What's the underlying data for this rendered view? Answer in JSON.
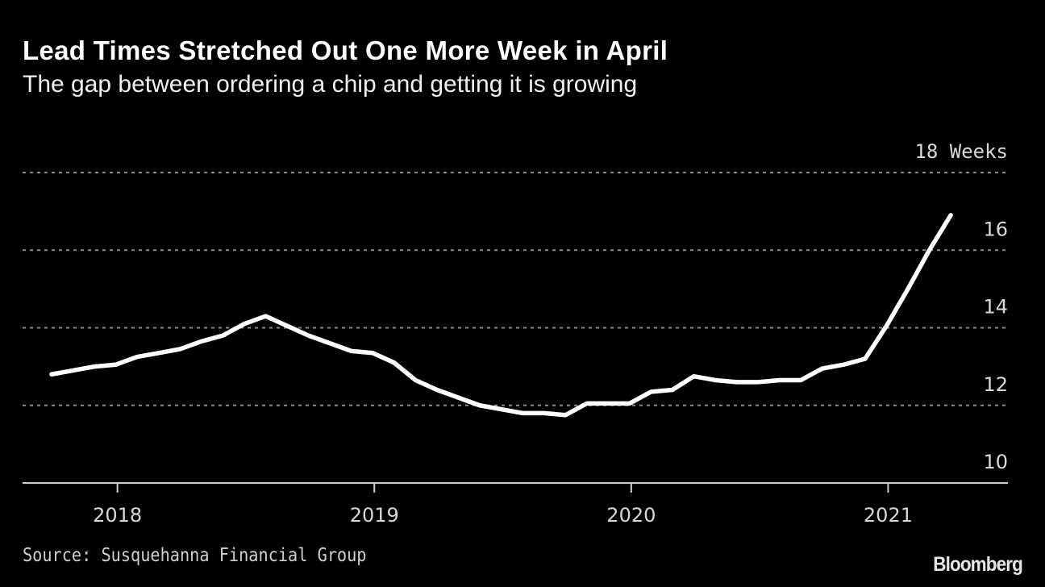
{
  "chart_data": {
    "type": "line",
    "title": "Lead Times Stretched Out One More Week in April",
    "subtitle": "The gap between ordering a chip and getting it is growing",
    "y_unit_label": "Weeks",
    "ylim": [
      10,
      18
    ],
    "y_ticks": [
      "10",
      "12",
      "14",
      "16",
      "18"
    ],
    "x_ticks": [
      "2018",
      "2019",
      "2020",
      "2021"
    ],
    "grid": "horizontal dotted",
    "line_color": "#ffffff",
    "x": [
      "2017-10",
      "2017-11",
      "2017-12",
      "2018-01",
      "2018-02",
      "2018-03",
      "2018-04",
      "2018-05",
      "2018-06",
      "2018-07",
      "2018-08",
      "2018-09",
      "2018-10",
      "2018-11",
      "2018-12",
      "2019-01",
      "2019-02",
      "2019-03",
      "2019-04",
      "2019-05",
      "2019-06",
      "2019-07",
      "2019-08",
      "2019-09",
      "2019-10",
      "2019-11",
      "2019-12",
      "2020-01",
      "2020-02",
      "2020-03",
      "2020-04",
      "2020-05",
      "2020-06",
      "2020-07",
      "2020-08",
      "2020-09",
      "2020-10",
      "2020-11",
      "2020-12",
      "2021-01",
      "2021-02",
      "2021-03",
      "2021-04"
    ],
    "values": [
      12.8,
      12.9,
      13.0,
      13.05,
      13.25,
      13.35,
      13.45,
      13.65,
      13.8,
      14.1,
      14.3,
      14.05,
      13.8,
      13.6,
      13.4,
      13.35,
      13.1,
      12.65,
      12.4,
      12.2,
      12.0,
      11.9,
      11.8,
      11.8,
      11.75,
      12.05,
      12.05,
      12.05,
      12.35,
      12.4,
      12.75,
      12.65,
      12.6,
      12.6,
      12.65,
      12.65,
      12.95,
      13.05,
      13.2,
      14.05,
      15.0,
      16.0,
      16.9
    ]
  },
  "source": "Source: Susquehanna Financial Group",
  "logo": "Bloomberg"
}
